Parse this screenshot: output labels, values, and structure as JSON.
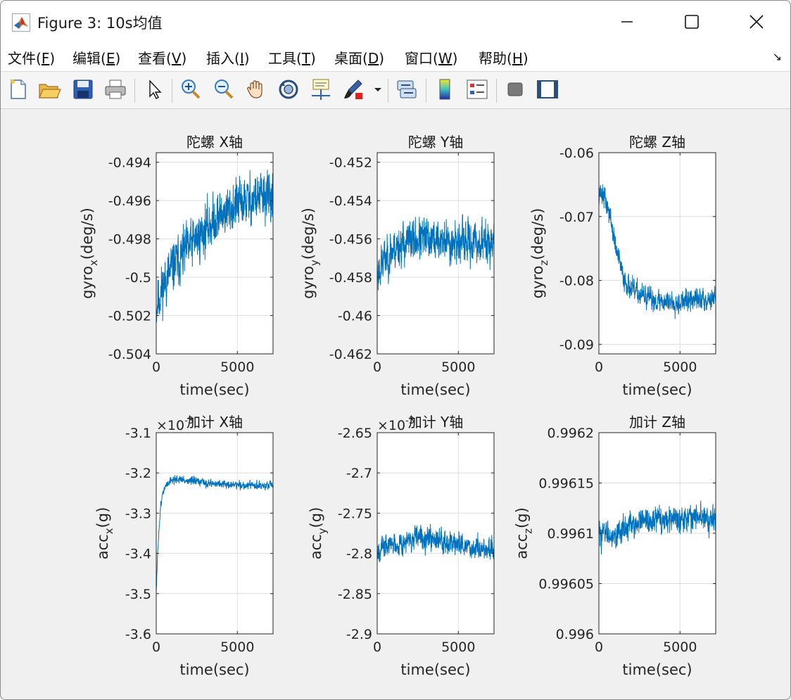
{
  "window": {
    "title": "Figure 3: 10s均值",
    "minimize_icon": "minimize-icon",
    "maximize_icon": "maximize-icon",
    "close_icon": "close-icon"
  },
  "menu": {
    "items": [
      {
        "text": "文件(",
        "key": "F",
        "end": ")"
      },
      {
        "text": "编辑(",
        "key": "E",
        "end": ")"
      },
      {
        "text": "查看(",
        "key": "V",
        "end": ")"
      },
      {
        "text": "插入(",
        "key": "I",
        "end": ")"
      },
      {
        "text": "工具(",
        "key": "T",
        "end": ")"
      },
      {
        "text": "桌面(",
        "key": "D",
        "end": ")"
      },
      {
        "text": "窗口(",
        "key": "W",
        "end": ")"
      },
      {
        "text": "帮助(",
        "key": "H",
        "end": ")"
      }
    ],
    "overflow_arrow": "↘"
  },
  "toolbar": {
    "icons": [
      "new-figure-icon",
      "open-file-icon",
      "save-icon",
      "print-icon",
      "select-arrow-icon",
      "zoom-in-icon",
      "zoom-out-icon",
      "pan-hand-icon",
      "rotate-3d-icon",
      "data-cursor-icon",
      "brush-icon",
      "brush-dropdown-icon",
      "link-plot-icon",
      "colorbar-icon",
      "legend-icon",
      "hide-plot-tools-icon",
      "show-plot-tools-icon"
    ]
  },
  "chart_data": [
    {
      "type": "line",
      "title": "陀螺 X轴",
      "xlabel": "time(sec)",
      "ylabel_base": "gyro",
      "ylabel_sub": "x",
      "ylabel_tail": "(deg/s)",
      "xlim": [
        0,
        7200
      ],
      "ylim": [
        -0.504,
        -0.4935
      ],
      "xticks": [
        0,
        5000
      ],
      "xtick_labels": [
        "0",
        "5000"
      ],
      "yticks": [
        -0.504,
        -0.502,
        -0.5,
        -0.498,
        -0.496,
        -0.494
      ],
      "ytick_labels": [
        "-0.504",
        "-0.502",
        "-0.5",
        "-0.498",
        "-0.496",
        "-0.494"
      ],
      "exponent": "",
      "color": "#0072bd",
      "trend": {
        "x": [
          0,
          100,
          500,
          1000,
          2000,
          3000,
          4000,
          5000,
          6000,
          7200
        ],
        "y": [
          -0.5017,
          -0.5012,
          -0.5003,
          -0.4995,
          -0.4985,
          -0.4975,
          -0.4967,
          -0.4962,
          -0.4959,
          -0.4957
        ]
      },
      "noise": 0.0019,
      "seed": 11
    },
    {
      "type": "line",
      "title": "陀螺 Y轴",
      "xlabel": "time(sec)",
      "ylabel_base": "gyro",
      "ylabel_sub": "y",
      "ylabel_tail": "(deg/s)",
      "xlim": [
        0,
        7200
      ],
      "ylim": [
        -0.462,
        -0.4515
      ],
      "xticks": [
        0,
        5000
      ],
      "xtick_labels": [
        "0",
        "5000"
      ],
      "yticks": [
        -0.462,
        -0.46,
        -0.458,
        -0.456,
        -0.454,
        -0.452
      ],
      "ytick_labels": [
        "-0.462",
        "-0.46",
        "-0.458",
        "-0.456",
        "-0.454",
        "-0.452"
      ],
      "exponent": "",
      "color": "#0072bd",
      "trend": {
        "x": [
          0,
          500,
          1000,
          2000,
          3000,
          4000,
          5000,
          6000,
          7200
        ],
        "y": [
          -0.4578,
          -0.457,
          -0.4565,
          -0.4561,
          -0.456,
          -0.4561,
          -0.4562,
          -0.4562,
          -0.4562
        ]
      },
      "noise": 0.0016,
      "seed": 23
    },
    {
      "type": "line",
      "title": "陀螺 Z轴",
      "xlabel": "time(sec)",
      "ylabel_base": "gyro",
      "ylabel_sub": "z",
      "ylabel_tail": "(deg/s)",
      "xlim": [
        0,
        7200
      ],
      "ylim": [
        -0.0915,
        -0.06
      ],
      "xticks": [
        0,
        5000
      ],
      "xtick_labels": [
        "0",
        "5000"
      ],
      "yticks": [
        -0.09,
        -0.08,
        -0.07,
        -0.06
      ],
      "ytick_labels": [
        "-0.09",
        "-0.08",
        "-0.07",
        "-0.06"
      ],
      "exponent": "",
      "color": "#0072bd",
      "trend": {
        "x": [
          0,
          300,
          700,
          1000,
          1500,
          2000,
          3000,
          4000,
          5000,
          6000,
          7200
        ],
        "y": [
          -0.066,
          -0.0668,
          -0.07,
          -0.0745,
          -0.0795,
          -0.0815,
          -0.0828,
          -0.0833,
          -0.0833,
          -0.083,
          -0.0828
        ]
      },
      "noise": 0.0026,
      "seed": 37
    },
    {
      "type": "line",
      "title": "加计 X轴",
      "xlabel": "time(sec)",
      "ylabel_base": "acc",
      "ylabel_sub": "x",
      "ylabel_tail": "(g)",
      "xlim": [
        0,
        7200
      ],
      "ylim": [
        -3.6,
        -3.1
      ],
      "xticks": [
        0,
        5000
      ],
      "xtick_labels": [
        "0",
        "5000"
      ],
      "yticks": [
        -3.6,
        -3.5,
        -3.4,
        -3.3,
        -3.2,
        -3.1
      ],
      "ytick_labels": [
        "-3.6",
        "-3.5",
        "-3.4",
        "-3.3",
        "-3.2",
        "-3.1"
      ],
      "exponent": "×10",
      "exponent_power": "-3",
      "color": "#0072bd",
      "trend": {
        "x": [
          0,
          50,
          150,
          300,
          500,
          800,
          1200,
          2000,
          3000,
          4000,
          5000,
          6000,
          7200
        ],
        "y": [
          -3.5,
          -3.44,
          -3.35,
          -3.27,
          -3.24,
          -3.22,
          -3.215,
          -3.22,
          -3.225,
          -3.228,
          -3.23,
          -3.232,
          -3.232
        ]
      },
      "noise": 0.015,
      "seed": 51
    },
    {
      "type": "line",
      "title": "加计 Y轴",
      "xlabel": "time(sec)",
      "ylabel_base": "acc",
      "ylabel_sub": "y",
      "ylabel_tail": "(g)",
      "xlim": [
        0,
        7200
      ],
      "ylim": [
        -2.9,
        -2.65
      ],
      "xticks": [
        0,
        5000
      ],
      "xtick_labels": [
        "0",
        "5000"
      ],
      "yticks": [
        -2.9,
        -2.85,
        -2.8,
        -2.75,
        -2.7,
        -2.65
      ],
      "ytick_labels": [
        "-2.9",
        "-2.85",
        "-2.8",
        "-2.75",
        "-2.7",
        "-2.65"
      ],
      "exponent": "×10",
      "exponent_power": "-3",
      "color": "#0072bd",
      "trend": {
        "x": [
          0,
          1000,
          2000,
          3000,
          4000,
          5000,
          6000,
          7200
        ],
        "y": [
          -2.795,
          -2.788,
          -2.785,
          -2.778,
          -2.782,
          -2.79,
          -2.793,
          -2.795
        ]
      },
      "noise": 0.021,
      "seed": 67
    },
    {
      "type": "line",
      "title": "加计 Z轴",
      "xlabel": "time(sec)",
      "ylabel_base": "acc",
      "ylabel_sub": "z",
      "ylabel_tail": "(g)",
      "xlim": [
        0,
        7200
      ],
      "ylim": [
        0.996,
        0.9962
      ],
      "xticks": [
        0,
        5000
      ],
      "xtick_labels": [
        "0",
        "5000"
      ],
      "yticks": [
        0.996,
        0.99605,
        0.9961,
        0.99615,
        0.9962
      ],
      "ytick_labels": [
        "0.996",
        "0.99605",
        "0.9961",
        "0.99615",
        "0.9962"
      ],
      "exponent": "",
      "color": "#0072bd",
      "trend": {
        "x": [
          0,
          1000,
          2000,
          3000,
          4000,
          5000,
          6000,
          7200
        ],
        "y": [
          0.9961,
          0.9961,
          0.996108,
          0.996112,
          0.996114,
          0.996116,
          0.996116,
          0.996114
        ]
      },
      "noise": 1.9e-05,
      "seed": 83
    }
  ]
}
